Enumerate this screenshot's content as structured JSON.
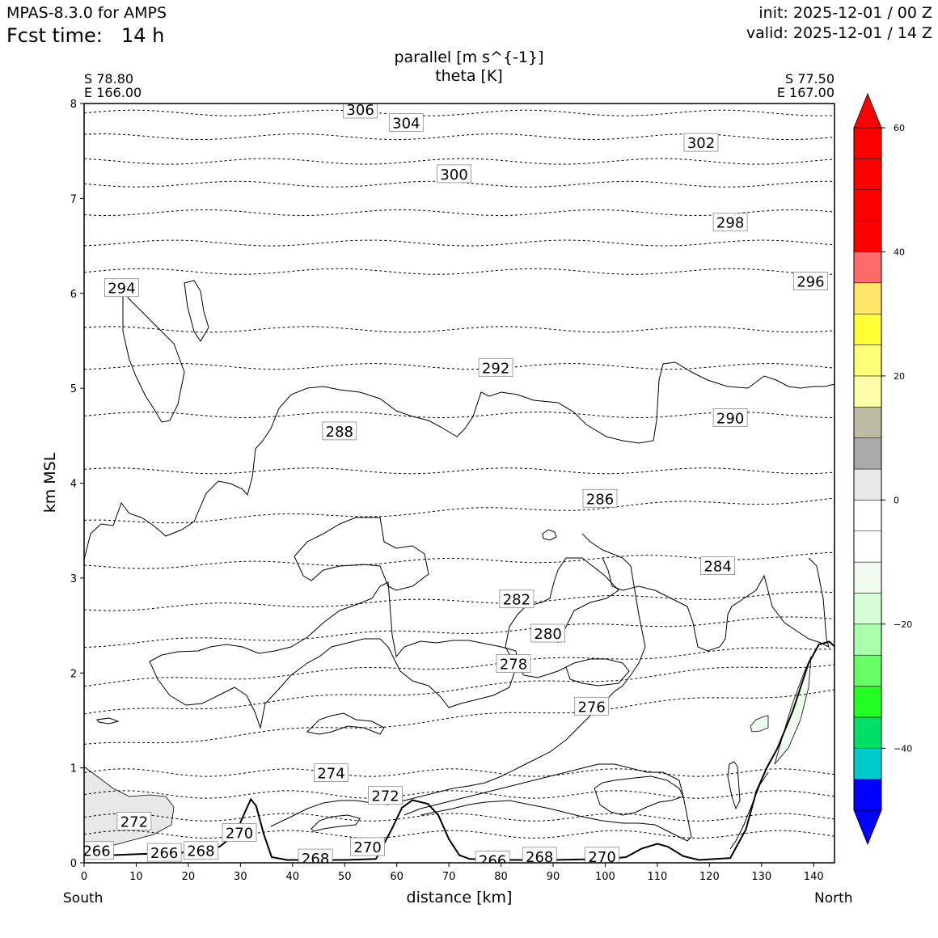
{
  "header": {
    "model": "MPAS-8.3.0 for AMPS",
    "fcst_label": "Fcst time:",
    "fcst_value": "14 h",
    "init": "init: 2025-12-01 / 00 Z",
    "valid": "valid: 2025-12-01 / 14 Z"
  },
  "chart_data": {
    "type": "contour",
    "title_lines": [
      "parallel [m s^{-1}]",
      "theta [K]"
    ],
    "xlabel": "distance [km]",
    "ylabel": "km MSL",
    "x_ticks": [
      0,
      10,
      20,
      30,
      40,
      50,
      60,
      70,
      80,
      90,
      100,
      110,
      120,
      130,
      140
    ],
    "y_ticks": [
      0,
      1,
      2,
      3,
      4,
      5,
      6,
      7,
      8
    ],
    "xlim": [
      0,
      144
    ],
    "ylim": [
      0,
      8
    ],
    "endpoints": {
      "left": {
        "lat": "S 78.80",
        "lon": "E 166.00",
        "side": "South"
      },
      "right": {
        "lat": "S 77.50",
        "lon": "E 167.00",
        "side": "North"
      }
    },
    "colorbar": {
      "ticks": [
        60,
        40,
        20,
        0,
        -20,
        -40
      ],
      "tick_labels": [
        "60",
        "40",
        "20",
        "0",
        "−20",
        "−40"
      ],
      "levels": [
        -50,
        -45,
        -40,
        -35,
        -30,
        -25,
        -20,
        -15,
        -10,
        -5,
        0,
        5,
        10,
        15,
        20,
        25,
        30,
        35,
        40,
        45,
        50,
        55,
        60
      ],
      "colors": [
        "#0000ff",
        "#00cccc",
        "#00e066",
        "#22ff22",
        "#66ff66",
        "#aaffaa",
        "#d7ffd7",
        "#effcef",
        "#ffffff",
        "#ffffff",
        "#e8e8e8",
        "#aaaaaa",
        "#bcbca4",
        "#ffffaa",
        "#ffff77",
        "#ffff33",
        "#ffe66b",
        "#ff6b6b",
        "#ff0000"
      ],
      "extend_low": "#0000ff",
      "extend_high": "#ff0000"
    },
    "theta_labels": [
      {
        "text": "306",
        "x": 53.0,
        "y": 7.94
      },
      {
        "text": "304",
        "x": 61.8,
        "y": 7.8
      },
      {
        "text": "302",
        "x": 118.4,
        "y": 7.59
      },
      {
        "text": "300",
        "x": 71.0,
        "y": 7.26
      },
      {
        "text": "298",
        "x": 124.0,
        "y": 6.75
      },
      {
        "text": "296",
        "x": 139.4,
        "y": 6.13
      },
      {
        "text": "294",
        "x": 7.2,
        "y": 6.06
      },
      {
        "text": "292",
        "x": 79.0,
        "y": 5.22
      },
      {
        "text": "290",
        "x": 124.0,
        "y": 4.69
      },
      {
        "text": "288",
        "x": 49.0,
        "y": 4.55
      },
      {
        "text": "286",
        "x": 99.0,
        "y": 3.84
      },
      {
        "text": "284",
        "x": 121.6,
        "y": 3.13
      },
      {
        "text": "282",
        "x": 83.0,
        "y": 2.78
      },
      {
        "text": "280",
        "x": 89.0,
        "y": 2.42
      },
      {
        "text": "278",
        "x": 82.4,
        "y": 2.1
      },
      {
        "text": "276",
        "x": 97.4,
        "y": 1.65
      },
      {
        "text": "274",
        "x": 47.4,
        "y": 0.95
      },
      {
        "text": "272",
        "x": 57.8,
        "y": 0.71
      },
      {
        "text": "272",
        "x": 9.6,
        "y": 0.44
      },
      {
        "text": "270",
        "x": 29.8,
        "y": 0.32
      },
      {
        "text": "270",
        "x": 54.4,
        "y": 0.17
      },
      {
        "text": "270",
        "x": 99.4,
        "y": 0.07
      },
      {
        "text": "268",
        "x": 22.4,
        "y": 0.13
      },
      {
        "text": "268",
        "x": 44.4,
        "y": 0.05
      },
      {
        "text": "268",
        "x": 87.4,
        "y": 0.07
      },
      {
        "text": "266",
        "x": 2.4,
        "y": 0.13
      },
      {
        "text": "266",
        "x": 15.4,
        "y": 0.11
      },
      {
        "text": "266",
        "x": 78.4,
        "y": 0.03
      }
    ],
    "terrain": [
      [
        0,
        0.07
      ],
      [
        10,
        0.09
      ],
      [
        20,
        0.11
      ],
      [
        26,
        0.17
      ],
      [
        29,
        0.3
      ],
      [
        31,
        0.55
      ],
      [
        32,
        0.67
      ],
      [
        33,
        0.6
      ],
      [
        34.5,
        0.3
      ],
      [
        36,
        0.06
      ],
      [
        39,
        0.03
      ],
      [
        50,
        0.03
      ],
      [
        56,
        0.04
      ],
      [
        59,
        0.35
      ],
      [
        61,
        0.58
      ],
      [
        63,
        0.66
      ],
      [
        66,
        0.62
      ],
      [
        68,
        0.5
      ],
      [
        70,
        0.25
      ],
      [
        72,
        0.08
      ],
      [
        74,
        0.04
      ],
      [
        80,
        0.03
      ],
      [
        90,
        0.03
      ],
      [
        100,
        0.04
      ],
      [
        104,
        0.06
      ],
      [
        107,
        0.15
      ],
      [
        110,
        0.2
      ],
      [
        112,
        0.17
      ],
      [
        115,
        0.07
      ],
      [
        118,
        0.03
      ],
      [
        124,
        0.05
      ],
      [
        127,
        0.35
      ],
      [
        129,
        0.75
      ],
      [
        131,
        1.0
      ],
      [
        133,
        1.2
      ],
      [
        136,
        1.6
      ],
      [
        139,
        2.1
      ],
      [
        141,
        2.3
      ],
      [
        143,
        2.33
      ],
      [
        144,
        2.28
      ]
    ]
  }
}
